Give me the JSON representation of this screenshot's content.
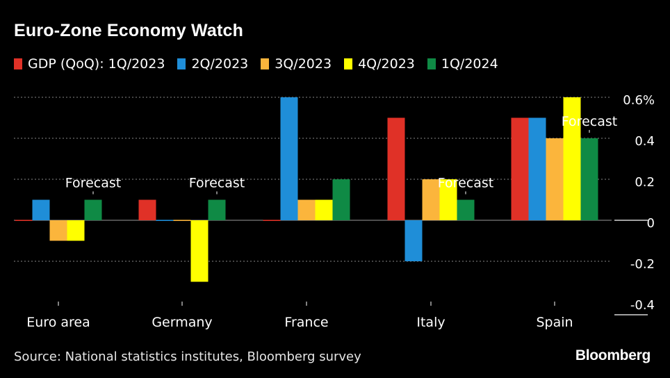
{
  "title": "Euro-Zone Economy Watch",
  "source": "Source: National statistics institutes, Bloomberg survey",
  "brand": "Bloomberg",
  "chart_data": {
    "type": "bar",
    "title": "Euro-Zone Economy Watch",
    "legend_position": "top",
    "grid": true,
    "y_axis_side": "right",
    "ylim": [
      -0.4,
      0.6
    ],
    "yticks": [
      {
        "value": 0.6,
        "label": "0.6%"
      },
      {
        "value": 0.4,
        "label": "0.4"
      },
      {
        "value": 0.2,
        "label": "0.2"
      },
      {
        "value": 0,
        "label": "0"
      },
      {
        "value": -0.2,
        "label": "-0.2"
      },
      {
        "value": -0.4,
        "label": "-0.4"
      }
    ],
    "categories": [
      "Euro area",
      "Germany",
      "France",
      "Italy",
      "Spain"
    ],
    "series": [
      {
        "name": "GDP (QoQ): 1Q/2023",
        "color": "#e03127",
        "values": [
          0.0,
          0.1,
          0.0,
          0.5,
          0.5
        ]
      },
      {
        "name": "2Q/2023",
        "color": "#1f8ed8",
        "values": [
          0.1,
          0.0,
          0.6,
          -0.2,
          0.5
        ]
      },
      {
        "name": "3Q/2023",
        "color": "#fbb53c",
        "values": [
          -0.1,
          0.0,
          0.1,
          0.2,
          0.4
        ]
      },
      {
        "name": "4Q/2023",
        "color": "#ffff00",
        "values": [
          -0.1,
          -0.3,
          0.1,
          0.2,
          0.6
        ]
      },
      {
        "name": "1Q/2024",
        "color": "#0f8a45",
        "values": [
          0.1,
          0.1,
          0.2,
          0.1,
          0.4
        ]
      }
    ],
    "annotations": [
      {
        "text": "Forecast",
        "category_index": 0,
        "series_index": 4
      },
      {
        "text": "Forecast",
        "category_index": 1,
        "series_index": 4
      },
      {
        "text": "Forecast",
        "category_index": 3,
        "series_index": 4
      },
      {
        "text": "Forecast",
        "category_index": 4,
        "series_index": 4
      }
    ]
  }
}
